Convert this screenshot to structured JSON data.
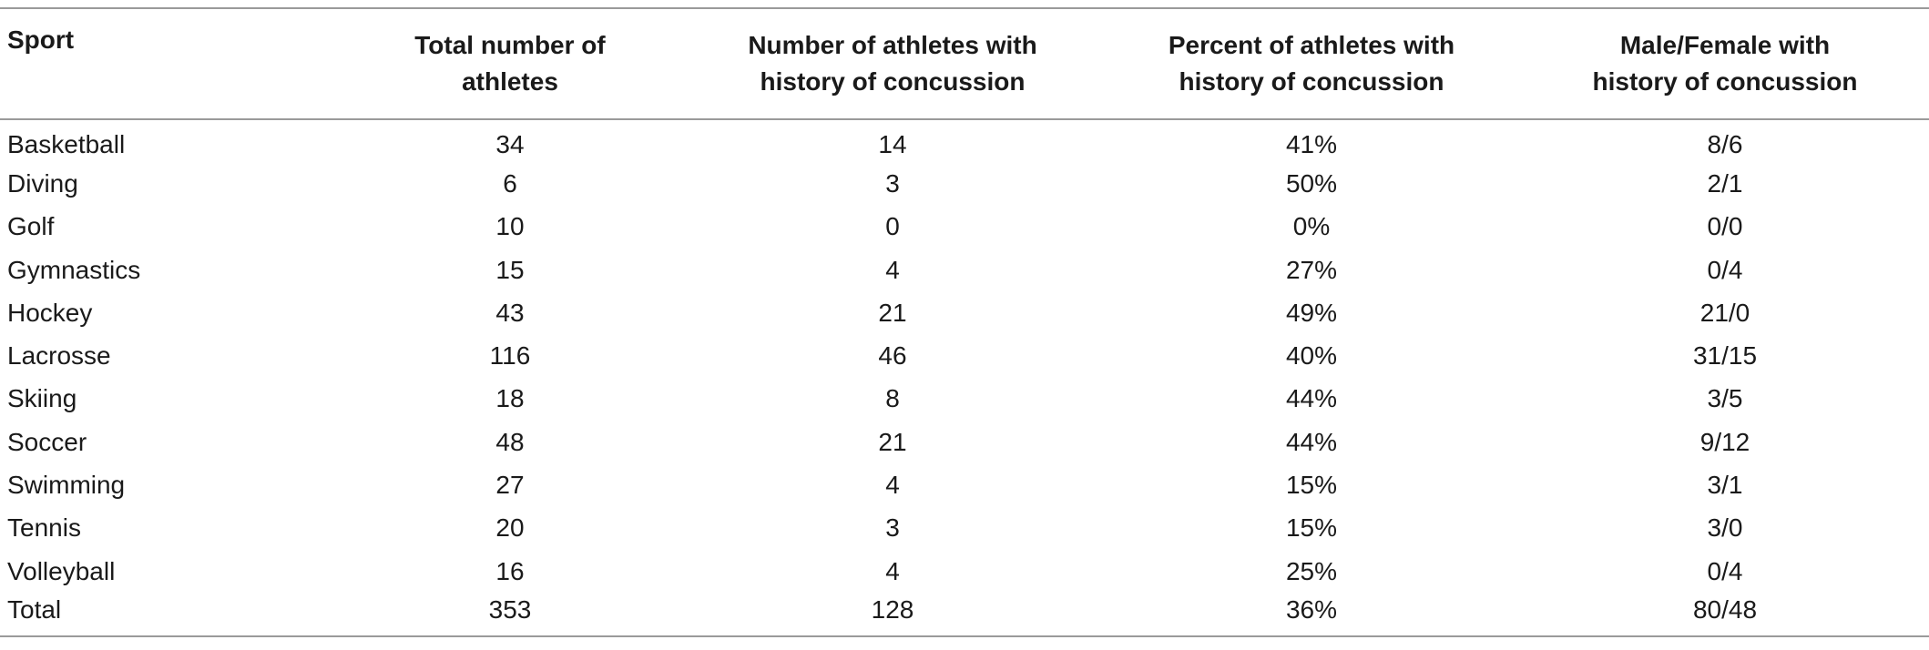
{
  "table": {
    "headers": [
      {
        "lines": [
          "Sport"
        ]
      },
      {
        "lines": [
          "Total number of",
          "athletes"
        ]
      },
      {
        "lines": [
          "Number of athletes with",
          "history of concussion"
        ]
      },
      {
        "lines": [
          "Percent of athletes with",
          "history of concussion"
        ]
      },
      {
        "lines": [
          "Male/Female with",
          "history of concussion"
        ]
      }
    ],
    "rows": [
      [
        "Basketball",
        "34",
        "14",
        "41%",
        "8/6"
      ],
      [
        "Diving",
        "6",
        "3",
        "50%",
        "2/1"
      ],
      [
        "Golf",
        "10",
        "0",
        "0%",
        "0/0"
      ],
      [
        "Gymnastics",
        "15",
        "4",
        "27%",
        "0/4"
      ],
      [
        "Hockey",
        "43",
        "21",
        "49%",
        "21/0"
      ],
      [
        "Lacrosse",
        "116",
        "46",
        "40%",
        "31/15"
      ],
      [
        "Skiing",
        "18",
        "8",
        "44%",
        "3/5"
      ],
      [
        "Soccer",
        "48",
        "21",
        "44%",
        "9/12"
      ],
      [
        "Swimming",
        "27",
        "4",
        "15%",
        "3/1"
      ],
      [
        "Tennis",
        "20",
        "3",
        "15%",
        "3/0"
      ],
      [
        "Volleyball",
        "16",
        "4",
        "25%",
        "0/4"
      ],
      [
        "Total",
        "353",
        "128",
        "36%",
        "80/48"
      ]
    ]
  }
}
